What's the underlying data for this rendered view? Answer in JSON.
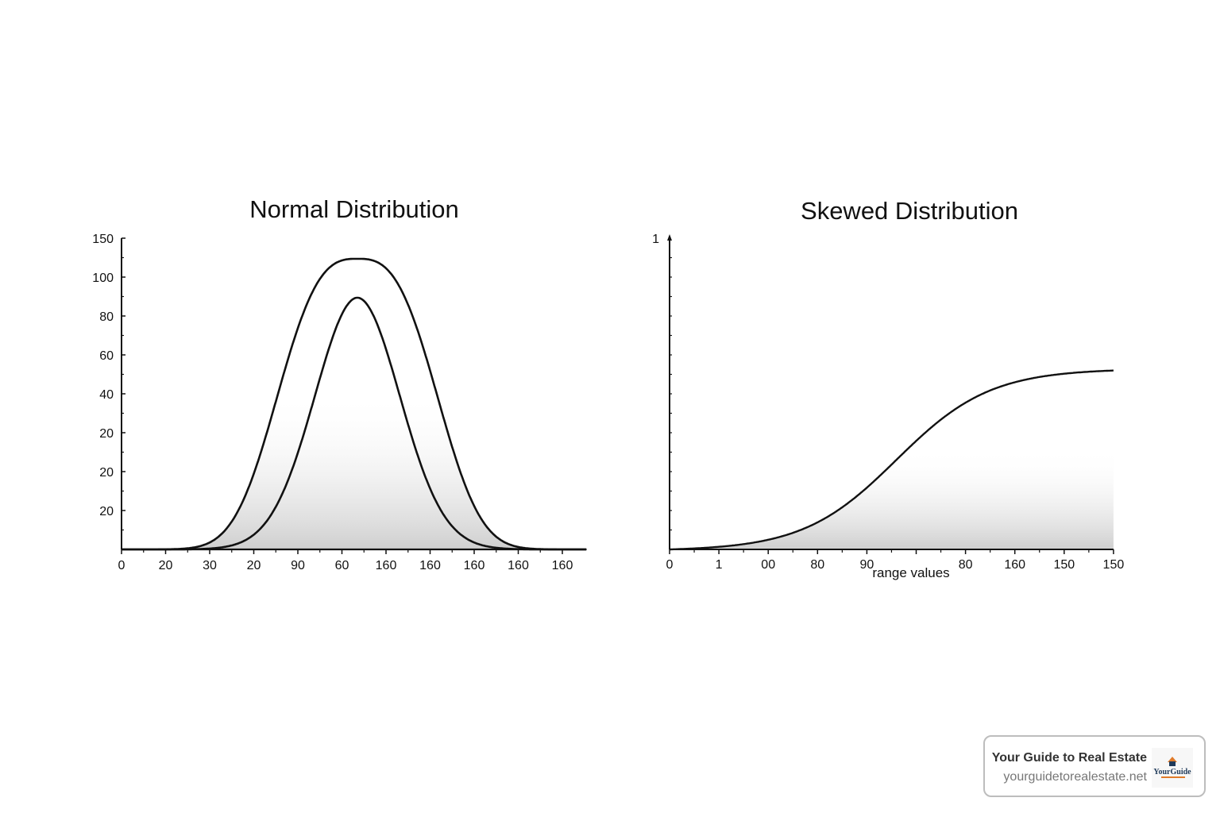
{
  "chart_data": [
    {
      "type": "line",
      "title": "Normal Distribution",
      "x_tick_labels": [
        "0",
        "20",
        "30",
        "20",
        "90",
        "60",
        "160",
        "160",
        "160",
        "160",
        "160"
      ],
      "y_tick_labels": [
        "",
        "20",
        "20",
        "20",
        "40",
        "60",
        "80",
        "100",
        "150"
      ],
      "x_units": "tick index",
      "y_units": "tick index",
      "xlim": [
        0,
        10.55
      ],
      "ylim": [
        0,
        8
      ],
      "grid": false,
      "fill": "gray gradient under curves",
      "series": [
        {
          "curve": "outer",
          "center": 5.35,
          "peak": 7.47,
          "width": 2.12,
          "shape": 2.88
        },
        {
          "curve": "inner",
          "center": 5.35,
          "peak": 6.47,
          "width": 1.38,
          "shape": 1.96
        }
      ]
    },
    {
      "type": "line",
      "title": "Skewed Distribution",
      "xlabel": "range values",
      "x_tick_labels": [
        "0",
        "1",
        "00",
        "80",
        "90",
        "",
        "80",
        "160",
        "150",
        "150"
      ],
      "y_tick_labels": [
        "1"
      ],
      "x_units": "tick index",
      "xlim": [
        0,
        9
      ],
      "ylim": [
        0,
        1
      ],
      "grid": false,
      "fill": "gray gradient under curve",
      "series": [
        {
          "curve": "logistic",
          "midpoint": 4.6,
          "scale": 0.95,
          "plateau": 0.585
        }
      ]
    }
  ],
  "badge": {
    "title": "Your Guide to Real Estate",
    "url": "yourguidetorealestate.net",
    "logo_text": "YourGuide"
  },
  "colors": {
    "line": "#111111",
    "fill_dark": "#cfcfcf",
    "badge_border": "#bdbdbd",
    "logo_orange": "#e07b2a",
    "logo_navy": "#1f3a5a"
  }
}
